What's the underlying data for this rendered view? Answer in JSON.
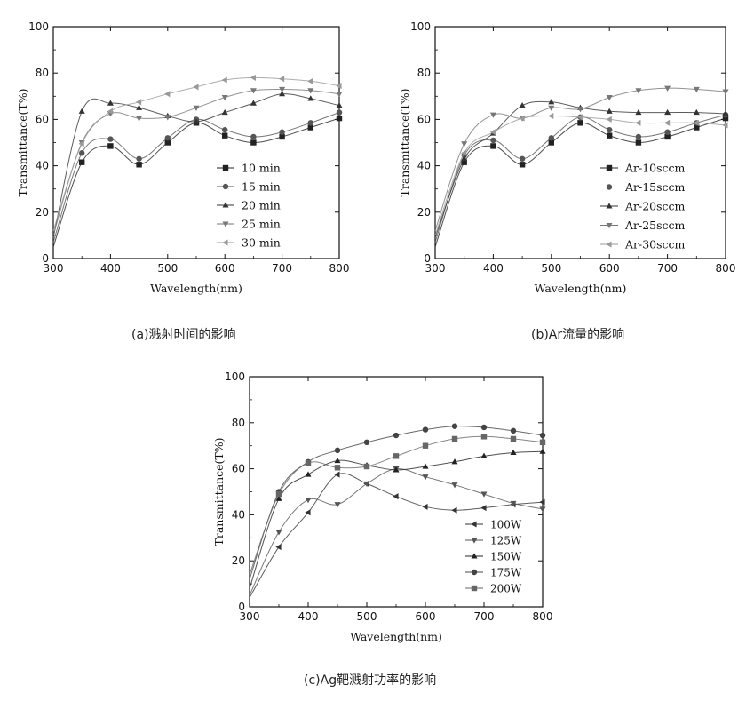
{
  "chart_data": [
    {
      "type": "line",
      "caption": "(a)溅射时间的影响",
      "xlabel": "Wavelength(nm)",
      "ylabel": "Transmittance(T%)",
      "xlim": [
        300,
        800
      ],
      "ylim": [
        0,
        100
      ],
      "xticks": [
        "300",
        "400",
        "500",
        "600",
        "700",
        "800"
      ],
      "yticks": [
        "0",
        "20",
        "40",
        "60",
        "80",
        "100"
      ],
      "legend_position": "bottom-right",
      "x": [
        300,
        350,
        400,
        450,
        500,
        550,
        600,
        650,
        700,
        750,
        800
      ],
      "series": [
        {
          "name": "10 min",
          "marker": "square",
          "color": "#222222",
          "values": [
            5,
            41.5,
            48.5,
            40.5,
            50,
            58.5,
            53,
            50,
            52.5,
            56.5,
            60.5
          ]
        },
        {
          "name": "15 min",
          "marker": "circle",
          "color": "#555555",
          "values": [
            7,
            45.5,
            51.5,
            43,
            52,
            60,
            55.5,
            52.5,
            54.5,
            58.5,
            63
          ]
        },
        {
          "name": "20 min",
          "marker": "triangle-up",
          "color": "#333333",
          "values": [
            9,
            63.5,
            67,
            65,
            61.5,
            59,
            63,
            67,
            71,
            69,
            66
          ]
        },
        {
          "name": "25 min",
          "marker": "triangle-down",
          "color": "#777777",
          "values": [
            10,
            50,
            62.5,
            60.5,
            61,
            65,
            69.5,
            72.5,
            73,
            72.5,
            71
          ]
        },
        {
          "name": "30 min",
          "marker": "triangle-left",
          "color": "#999999",
          "values": [
            12,
            49.5,
            63.5,
            67.5,
            71,
            74,
            77,
            78,
            77.5,
            76.5,
            74.5
          ]
        }
      ]
    },
    {
      "type": "line",
      "caption": "(b)Ar流量的影响",
      "xlabel": "Wavelength(nm)",
      "ylabel": "Transmittance(T%)",
      "xlim": [
        300,
        800
      ],
      "ylim": [
        0,
        100
      ],
      "xticks": [
        "300",
        "400",
        "500",
        "600",
        "700",
        "800"
      ],
      "yticks": [
        "0",
        "20",
        "40",
        "60",
        "80",
        "100"
      ],
      "legend_position": "bottom-right",
      "x": [
        300,
        350,
        400,
        450,
        500,
        550,
        600,
        650,
        700,
        750,
        800
      ],
      "series": [
        {
          "name": "Ar-10sccm",
          "marker": "square",
          "color": "#222222",
          "values": [
            5,
            41.5,
            48.5,
            40.5,
            50,
            58.5,
            53,
            50,
            52.5,
            56.5,
            60.5
          ]
        },
        {
          "name": "Ar-15sccm",
          "marker": "circle",
          "color": "#555555",
          "values": [
            7,
            44.5,
            51,
            43,
            52,
            61,
            55.5,
            52.5,
            54.5,
            58.5,
            62
          ]
        },
        {
          "name": "Ar-20sccm",
          "marker": "triangle-up",
          "color": "#333333",
          "values": [
            9,
            43,
            54,
            66,
            67.5,
            65,
            63.5,
            63,
            63,
            63,
            62.5
          ]
        },
        {
          "name": "Ar-25sccm",
          "marker": "triangle-down",
          "color": "#777777",
          "values": [
            12,
            49.5,
            62,
            60.5,
            65,
            64.5,
            69.5,
            72.5,
            73.5,
            73,
            72
          ]
        },
        {
          "name": "Ar-30sccm",
          "marker": "triangle-left",
          "color": "#999999",
          "values": [
            10,
            45.5,
            54.5,
            60.5,
            61.5,
            61,
            60,
            58.5,
            58.5,
            58.5,
            57.5
          ]
        }
      ]
    },
    {
      "type": "line",
      "caption": "(c)Ag靶溅射功率的影响",
      "xlabel": "Wavelength(nm)",
      "ylabel": "Transmittance(T%)",
      "xlim": [
        300,
        800
      ],
      "ylim": [
        0,
        100
      ],
      "xticks": [
        "300",
        "400",
        "500",
        "600",
        "700",
        "800"
      ],
      "yticks": [
        "0",
        "20",
        "40",
        "60",
        "80",
        "100"
      ],
      "legend_position": "bottom-right",
      "x": [
        300,
        350,
        400,
        450,
        500,
        550,
        600,
        650,
        700,
        750,
        800
      ],
      "series": [
        {
          "name": "100W",
          "marker": "triangle-left",
          "color": "#333333",
          "values": [
            4,
            26,
            41,
            57.5,
            53.5,
            48,
            43.5,
            42,
            43,
            44.5,
            45.5
          ]
        },
        {
          "name": "125W",
          "marker": "triangle-down",
          "color": "#555555",
          "values": [
            5,
            32.5,
            46.5,
            44.5,
            53.5,
            60,
            56.5,
            53,
            49,
            45,
            42.5
          ]
        },
        {
          "name": "150W",
          "marker": "triangle-up",
          "color": "#222222",
          "values": [
            8,
            47,
            57.5,
            63.5,
            61.5,
            59.5,
            61,
            63,
            65.5,
            67,
            67.5
          ]
        },
        {
          "name": "175W",
          "marker": "circle",
          "color": "#444444",
          "values": [
            12,
            50,
            63,
            68,
            71.5,
            74.5,
            77,
            78.5,
            78,
            76.5,
            74.5
          ]
        },
        {
          "name": "200W",
          "marker": "square",
          "color": "#666666",
          "values": [
            14,
            49,
            62.5,
            60.5,
            61,
            65.5,
            70,
            73,
            74,
            73,
            71.5
          ]
        }
      ]
    }
  ]
}
